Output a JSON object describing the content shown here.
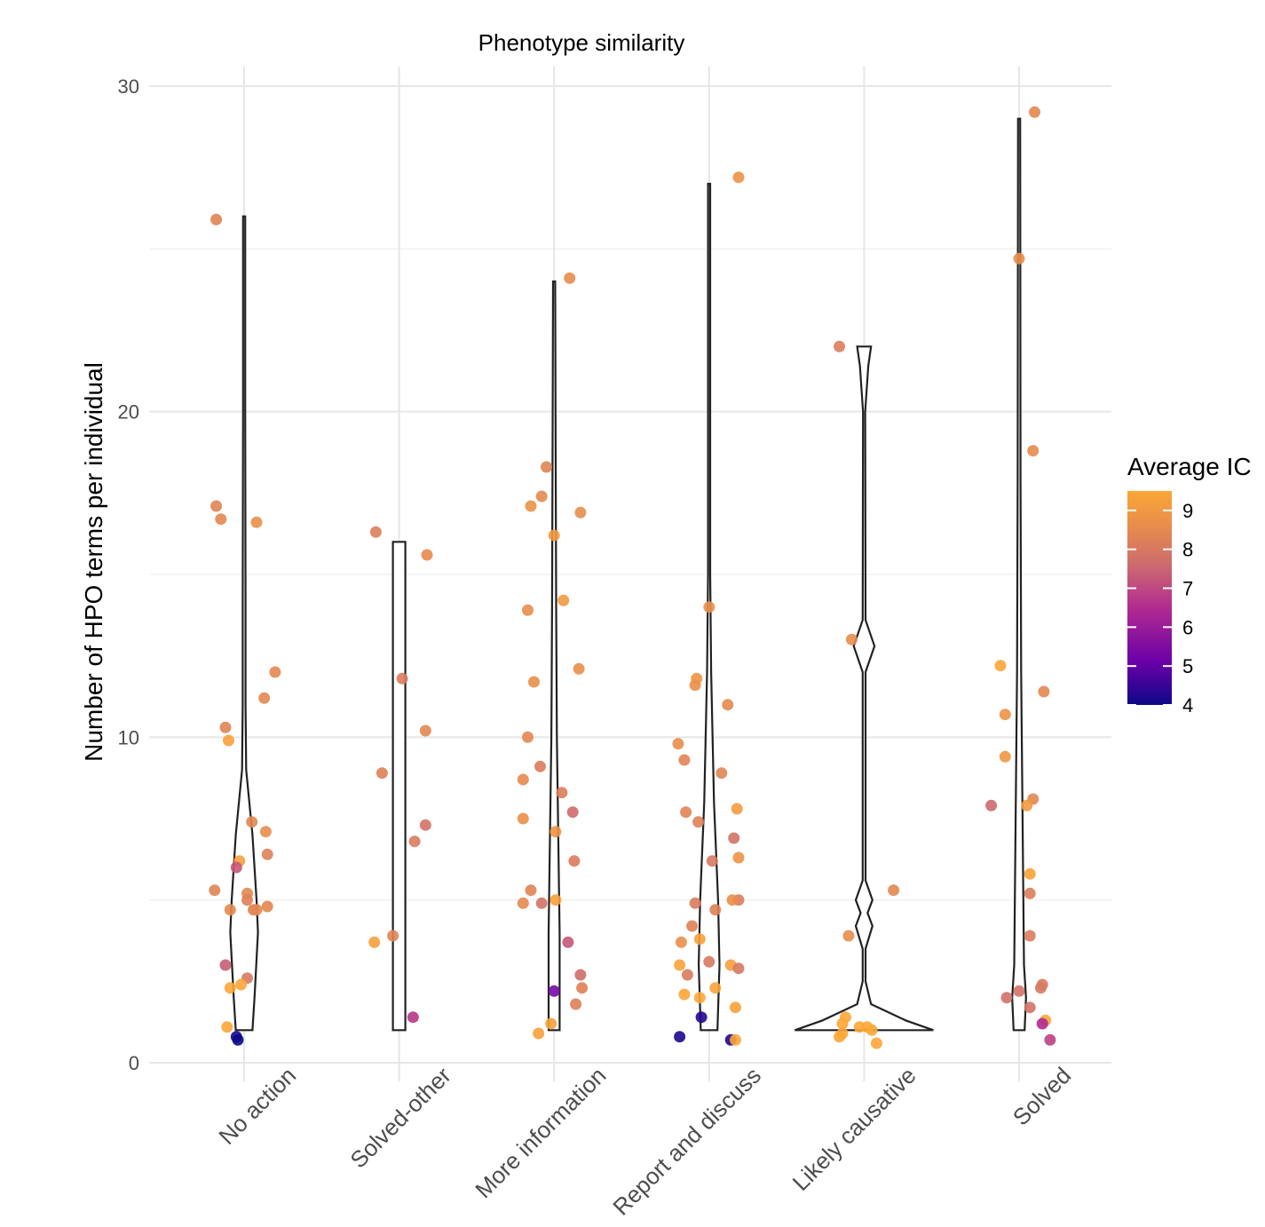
{
  "chart_data": {
    "type": "violin+jitter",
    "title": "Phenotype similarity",
    "xlabel": "",
    "ylabel": "Number of HPO terms per individual",
    "ylim": [
      0,
      30
    ],
    "yticks": [
      0,
      10,
      20,
      30
    ],
    "categories": [
      "No action",
      "Solved-other",
      "More information",
      "Report and discuss",
      "Likely causative",
      "Solved"
    ],
    "legend": {
      "title": "Average IC",
      "ticks": [
        4,
        5,
        6,
        7,
        8,
        9
      ],
      "range": [
        4,
        9.5
      ],
      "colors": [
        "#0d0887",
        "#6a00a8",
        "#b12a90",
        "#cc6a70",
        "#e58a4e",
        "#fca636"
      ]
    },
    "violins": [
      {
        "category": "No action",
        "min": 1,
        "max": 26,
        "width_profile": [
          [
            1,
            0.12
          ],
          [
            2,
            0.15
          ],
          [
            4,
            0.2
          ],
          [
            5,
            0.18
          ],
          [
            7,
            0.12
          ],
          [
            9,
            0.03
          ],
          [
            11,
            0.02
          ],
          [
            14,
            0.02
          ],
          [
            20,
            0.015
          ],
          [
            26,
            0.01
          ]
        ]
      },
      {
        "category": "Solved-other",
        "min": 1,
        "max": 16,
        "width_profile": [
          [
            1,
            0.09
          ],
          [
            16,
            0.09
          ]
        ]
      },
      {
        "category": "More information",
        "min": 1,
        "max": 24,
        "width_profile": [
          [
            1,
            0.08
          ],
          [
            4,
            0.08
          ],
          [
            10,
            0.04
          ],
          [
            14,
            0.03
          ],
          [
            20,
            0.02
          ],
          [
            24,
            0.01
          ]
        ]
      },
      {
        "category": "Report and discuss",
        "min": 1,
        "max": 27,
        "width_profile": [
          [
            1,
            0.12
          ],
          [
            3,
            0.15
          ],
          [
            5,
            0.13
          ],
          [
            8,
            0.07
          ],
          [
            12,
            0.03
          ],
          [
            15,
            0.015
          ],
          [
            27,
            0.01
          ]
        ]
      },
      {
        "category": "Likely causative",
        "min": 1,
        "max": 22,
        "width_profile": [
          [
            1,
            1.0
          ],
          [
            1.3,
            0.6
          ],
          [
            1.8,
            0.1
          ],
          [
            2.5,
            0.02
          ],
          [
            3.5,
            0.02
          ],
          [
            4.2,
            0.12
          ],
          [
            4.6,
            0.05
          ],
          [
            5,
            0.12
          ],
          [
            5.6,
            0.02
          ],
          [
            12,
            0.02
          ],
          [
            12.8,
            0.15
          ],
          [
            13.6,
            0.02
          ],
          [
            20,
            0.01
          ],
          [
            21.4,
            0.06
          ],
          [
            22,
            0.1
          ]
        ]
      },
      {
        "category": "Solved",
        "min": 1,
        "max": 29,
        "width_profile": [
          [
            1,
            0.08
          ],
          [
            2,
            0.1
          ],
          [
            3,
            0.07
          ],
          [
            12,
            0.03
          ],
          [
            18,
            0.02
          ],
          [
            29,
            0.01
          ]
        ]
      }
    ],
    "points": [
      {
        "category": "No action",
        "offset": -0.18,
        "y": 25.9,
        "ic": 8.2
      },
      {
        "category": "No action",
        "offset": -0.18,
        "y": 17.1,
        "ic": 8.2
      },
      {
        "category": "No action",
        "offset": -0.15,
        "y": 16.7,
        "ic": 8.3
      },
      {
        "category": "No action",
        "offset": 0.08,
        "y": 16.6,
        "ic": 8.6
      },
      {
        "category": "No action",
        "offset": 0.2,
        "y": 12.0,
        "ic": 8.3
      },
      {
        "category": "No action",
        "offset": 0.13,
        "y": 11.2,
        "ic": 8.3
      },
      {
        "category": "No action",
        "offset": -0.12,
        "y": 10.3,
        "ic": 8.2
      },
      {
        "category": "No action",
        "offset": -0.1,
        "y": 9.9,
        "ic": 9.3
      },
      {
        "category": "No action",
        "offset": 0.05,
        "y": 7.4,
        "ic": 8.3
      },
      {
        "category": "No action",
        "offset": 0.14,
        "y": 7.1,
        "ic": 8.5
      },
      {
        "category": "No action",
        "offset": 0.15,
        "y": 6.4,
        "ic": 8.1
      },
      {
        "category": "No action",
        "offset": -0.03,
        "y": 6.2,
        "ic": 9.2
      },
      {
        "category": "No action",
        "offset": -0.05,
        "y": 6.0,
        "ic": 7.0
      },
      {
        "category": "No action",
        "offset": -0.19,
        "y": 5.3,
        "ic": 8.2
      },
      {
        "category": "No action",
        "offset": 0.02,
        "y": 5.2,
        "ic": 8.3
      },
      {
        "category": "No action",
        "offset": 0.02,
        "y": 5.0,
        "ic": 8.1
      },
      {
        "category": "No action",
        "offset": 0.15,
        "y": 4.8,
        "ic": 8.3
      },
      {
        "category": "No action",
        "offset": -0.09,
        "y": 4.7,
        "ic": 8.4
      },
      {
        "category": "No action",
        "offset": 0.06,
        "y": 4.7,
        "ic": 8.2
      },
      {
        "category": "No action",
        "offset": 0.08,
        "y": 4.7,
        "ic": 8.3
      },
      {
        "category": "No action",
        "offset": -0.12,
        "y": 3.0,
        "ic": 7.1
      },
      {
        "category": "No action",
        "offset": 0.02,
        "y": 2.6,
        "ic": 7.8
      },
      {
        "category": "No action",
        "offset": -0.09,
        "y": 2.3,
        "ic": 9.5
      },
      {
        "category": "No action",
        "offset": -0.02,
        "y": 2.4,
        "ic": 9.5
      },
      {
        "category": "No action",
        "offset": -0.11,
        "y": 1.1,
        "ic": 9.5
      },
      {
        "category": "No action",
        "offset": -0.05,
        "y": 0.8,
        "ic": 4.2
      },
      {
        "category": "No action",
        "offset": -0.04,
        "y": 0.7,
        "ic": 4.0
      },
      {
        "category": "Solved-other",
        "offset": -0.15,
        "y": 16.3,
        "ic": 8.0
      },
      {
        "category": "Solved-other",
        "offset": 0.18,
        "y": 15.6,
        "ic": 8.4
      },
      {
        "category": "Solved-other",
        "offset": 0.02,
        "y": 11.8,
        "ic": 7.9
      },
      {
        "category": "Solved-other",
        "offset": 0.17,
        "y": 10.2,
        "ic": 8.3
      },
      {
        "category": "Solved-other",
        "offset": -0.11,
        "y": 8.9,
        "ic": 8.1
      },
      {
        "category": "Solved-other",
        "offset": 0.17,
        "y": 7.3,
        "ic": 7.6
      },
      {
        "category": "Solved-other",
        "offset": 0.1,
        "y": 6.8,
        "ic": 7.9
      },
      {
        "category": "Solved-other",
        "offset": -0.04,
        "y": 3.9,
        "ic": 8.2
      },
      {
        "category": "Solved-other",
        "offset": -0.16,
        "y": 3.7,
        "ic": 9.2
      },
      {
        "category": "Solved-other",
        "offset": 0.09,
        "y": 1.4,
        "ic": 6.4
      },
      {
        "category": "More information",
        "offset": 0.1,
        "y": 24.1,
        "ic": 8.5
      },
      {
        "category": "More information",
        "offset": -0.05,
        "y": 18.3,
        "ic": 8.2
      },
      {
        "category": "More information",
        "offset": -0.08,
        "y": 17.4,
        "ic": 8.4
      },
      {
        "category": "More information",
        "offset": -0.15,
        "y": 17.1,
        "ic": 8.7
      },
      {
        "category": "More information",
        "offset": 0.17,
        "y": 16.9,
        "ic": 8.5
      },
      {
        "category": "More information",
        "offset": 0.0,
        "y": 16.2,
        "ic": 9.0
      },
      {
        "category": "More information",
        "offset": 0.06,
        "y": 14.2,
        "ic": 9.0
      },
      {
        "category": "More information",
        "offset": -0.17,
        "y": 13.9,
        "ic": 8.5
      },
      {
        "category": "More information",
        "offset": 0.16,
        "y": 12.1,
        "ic": 8.6
      },
      {
        "category": "More information",
        "offset": -0.13,
        "y": 11.7,
        "ic": 8.6
      },
      {
        "category": "More information",
        "offset": -0.17,
        "y": 10.0,
        "ic": 8.3
      },
      {
        "category": "More information",
        "offset": -0.09,
        "y": 9.1,
        "ic": 7.9
      },
      {
        "category": "More information",
        "offset": -0.2,
        "y": 8.7,
        "ic": 8.4
      },
      {
        "category": "More information",
        "offset": 0.05,
        "y": 8.3,
        "ic": 8.0
      },
      {
        "category": "More information",
        "offset": 0.12,
        "y": 7.7,
        "ic": 7.4
      },
      {
        "category": "More information",
        "offset": 0.01,
        "y": 7.1,
        "ic": 8.8
      },
      {
        "category": "More information",
        "offset": -0.2,
        "y": 7.5,
        "ic": 8.6
      },
      {
        "category": "More information",
        "offset": 0.13,
        "y": 6.2,
        "ic": 7.9
      },
      {
        "category": "More information",
        "offset": -0.15,
        "y": 5.3,
        "ic": 8.2
      },
      {
        "category": "More information",
        "offset": -0.2,
        "y": 4.9,
        "ic": 8.4
      },
      {
        "category": "More information",
        "offset": -0.08,
        "y": 4.9,
        "ic": 7.6
      },
      {
        "category": "More information",
        "offset": 0.01,
        "y": 5.0,
        "ic": 9.2
      },
      {
        "category": "More information",
        "offset": 0.09,
        "y": 3.7,
        "ic": 7.0
      },
      {
        "category": "More information",
        "offset": 0.17,
        "y": 2.7,
        "ic": 7.4
      },
      {
        "category": "More information",
        "offset": 0.18,
        "y": 2.3,
        "ic": 8.1
      },
      {
        "category": "More information",
        "offset": 0.0,
        "y": 2.2,
        "ic": 5.3
      },
      {
        "category": "More information",
        "offset": 0.14,
        "y": 1.8,
        "ic": 8.1
      },
      {
        "category": "More information",
        "offset": -0.02,
        "y": 1.2,
        "ic": 9.3
      },
      {
        "category": "More information",
        "offset": -0.1,
        "y": 0.9,
        "ic": 9.3
      },
      {
        "category": "Report and discuss",
        "offset": 0.19,
        "y": 27.2,
        "ic": 8.7
      },
      {
        "category": "Report and discuss",
        "offset": 0.0,
        "y": 14.0,
        "ic": 8.6
      },
      {
        "category": "Report and discuss",
        "offset": -0.08,
        "y": 11.8,
        "ic": 8.8
      },
      {
        "category": "Report and discuss",
        "offset": -0.09,
        "y": 11.6,
        "ic": 8.6
      },
      {
        "category": "Report and discuss",
        "offset": 0.12,
        "y": 11.0,
        "ic": 8.4
      },
      {
        "category": "Report and discuss",
        "offset": -0.2,
        "y": 9.8,
        "ic": 8.5
      },
      {
        "category": "Report and discuss",
        "offset": -0.16,
        "y": 9.3,
        "ic": 8.2
      },
      {
        "category": "Report and discuss",
        "offset": 0.08,
        "y": 8.9,
        "ic": 8.2
      },
      {
        "category": "Report and discuss",
        "offset": 0.18,
        "y": 7.8,
        "ic": 9.1
      },
      {
        "category": "Report and discuss",
        "offset": -0.15,
        "y": 7.7,
        "ic": 8.2
      },
      {
        "category": "Report and discuss",
        "offset": -0.07,
        "y": 7.4,
        "ic": 8.1
      },
      {
        "category": "Report and discuss",
        "offset": 0.16,
        "y": 6.9,
        "ic": 7.6
      },
      {
        "category": "Report and discuss",
        "offset": 0.19,
        "y": 6.3,
        "ic": 8.8
      },
      {
        "category": "Report and discuss",
        "offset": 0.02,
        "y": 6.2,
        "ic": 7.8
      },
      {
        "category": "Report and discuss",
        "offset": 0.19,
        "y": 5.0,
        "ic": 7.9
      },
      {
        "category": "Report and discuss",
        "offset": 0.15,
        "y": 5.0,
        "ic": 8.6
      },
      {
        "category": "Report and discuss",
        "offset": -0.09,
        "y": 4.9,
        "ic": 7.9
      },
      {
        "category": "Report and discuss",
        "offset": 0.04,
        "y": 4.7,
        "ic": 8.1
      },
      {
        "category": "Report and discuss",
        "offset": -0.11,
        "y": 4.2,
        "ic": 8.1
      },
      {
        "category": "Report and discuss",
        "offset": -0.18,
        "y": 3.7,
        "ic": 8.6
      },
      {
        "category": "Report and discuss",
        "offset": -0.06,
        "y": 3.8,
        "ic": 9.3
      },
      {
        "category": "Report and discuss",
        "offset": 0.0,
        "y": 3.1,
        "ic": 7.8
      },
      {
        "category": "Report and discuss",
        "offset": 0.14,
        "y": 3.0,
        "ic": 9.2
      },
      {
        "category": "Report and discuss",
        "offset": 0.19,
        "y": 2.9,
        "ic": 7.8
      },
      {
        "category": "Report and discuss",
        "offset": -0.19,
        "y": 3.0,
        "ic": 9.4
      },
      {
        "category": "Report and discuss",
        "offset": -0.14,
        "y": 2.7,
        "ic": 7.9
      },
      {
        "category": "Report and discuss",
        "offset": 0.04,
        "y": 2.3,
        "ic": 9.4
      },
      {
        "category": "Report and discuss",
        "offset": -0.16,
        "y": 2.1,
        "ic": 9.5
      },
      {
        "category": "Report and discuss",
        "offset": -0.06,
        "y": 2.0,
        "ic": 9.5
      },
      {
        "category": "Report and discuss",
        "offset": 0.17,
        "y": 1.7,
        "ic": 9.3
      },
      {
        "category": "Report and discuss",
        "offset": -0.05,
        "y": 1.4,
        "ic": 4.3
      },
      {
        "category": "Report and discuss",
        "offset": -0.19,
        "y": 0.8,
        "ic": 4.2
      },
      {
        "category": "Report and discuss",
        "offset": 0.14,
        "y": 0.7,
        "ic": 4.2
      },
      {
        "category": "Report and discuss",
        "offset": 0.17,
        "y": 0.7,
        "ic": 9.5
      },
      {
        "category": "Likely causative",
        "offset": -0.16,
        "y": 22.0,
        "ic": 8.0
      },
      {
        "category": "Likely causative",
        "offset": -0.08,
        "y": 13.0,
        "ic": 8.5
      },
      {
        "category": "Likely causative",
        "offset": 0.19,
        "y": 5.3,
        "ic": 8.3
      },
      {
        "category": "Likely causative",
        "offset": -0.1,
        "y": 3.9,
        "ic": 8.5
      },
      {
        "category": "Likely causative",
        "offset": -0.12,
        "y": 1.4,
        "ic": 9.6
      },
      {
        "category": "Likely causative",
        "offset": -0.14,
        "y": 1.2,
        "ic": 9.6
      },
      {
        "category": "Likely causative",
        "offset": -0.03,
        "y": 1.1,
        "ic": 9.6
      },
      {
        "category": "Likely causative",
        "offset": 0.02,
        "y": 1.1,
        "ic": 9.6
      },
      {
        "category": "Likely causative",
        "offset": 0.05,
        "y": 1.0,
        "ic": 9.6
      },
      {
        "category": "Likely causative",
        "offset": -0.14,
        "y": 0.9,
        "ic": 9.6
      },
      {
        "category": "Likely causative",
        "offset": -0.16,
        "y": 0.8,
        "ic": 9.6
      },
      {
        "category": "Likely causative",
        "offset": 0.08,
        "y": 0.6,
        "ic": 9.6
      },
      {
        "category": "Solved",
        "offset": 0.1,
        "y": 29.2,
        "ic": 8.3
      },
      {
        "category": "Solved",
        "offset": 0.0,
        "y": 24.7,
        "ic": 8.6
      },
      {
        "category": "Solved",
        "offset": 0.09,
        "y": 18.8,
        "ic": 8.4
      },
      {
        "category": "Solved",
        "offset": -0.12,
        "y": 12.2,
        "ic": 9.5
      },
      {
        "category": "Solved",
        "offset": 0.16,
        "y": 11.4,
        "ic": 8.3
      },
      {
        "category": "Solved",
        "offset": -0.09,
        "y": 10.7,
        "ic": 8.8
      },
      {
        "category": "Solved",
        "offset": -0.09,
        "y": 9.4,
        "ic": 8.9
      },
      {
        "category": "Solved",
        "offset": 0.09,
        "y": 8.1,
        "ic": 8.3
      },
      {
        "category": "Solved",
        "offset": 0.05,
        "y": 7.9,
        "ic": 9.0
      },
      {
        "category": "Solved",
        "offset": -0.18,
        "y": 7.9,
        "ic": 7.3
      },
      {
        "category": "Solved",
        "offset": 0.07,
        "y": 5.8,
        "ic": 9.4
      },
      {
        "category": "Solved",
        "offset": 0.07,
        "y": 5.2,
        "ic": 8.0
      },
      {
        "category": "Solved",
        "offset": 0.07,
        "y": 3.9,
        "ic": 7.9
      },
      {
        "category": "Solved",
        "offset": 0.15,
        "y": 2.4,
        "ic": 7.8
      },
      {
        "category": "Solved",
        "offset": 0.14,
        "y": 2.3,
        "ic": 7.8
      },
      {
        "category": "Solved",
        "offset": 0.0,
        "y": 2.2,
        "ic": 7.6
      },
      {
        "category": "Solved",
        "offset": -0.08,
        "y": 2.0,
        "ic": 7.5
      },
      {
        "category": "Solved",
        "offset": 0.07,
        "y": 1.7,
        "ic": 7.6
      },
      {
        "category": "Solved",
        "offset": 0.17,
        "y": 1.3,
        "ic": 9.5
      },
      {
        "category": "Solved",
        "offset": 0.15,
        "y": 1.2,
        "ic": 6.2
      },
      {
        "category": "Solved",
        "offset": 0.2,
        "y": 0.7,
        "ic": 6.6
      }
    ]
  }
}
